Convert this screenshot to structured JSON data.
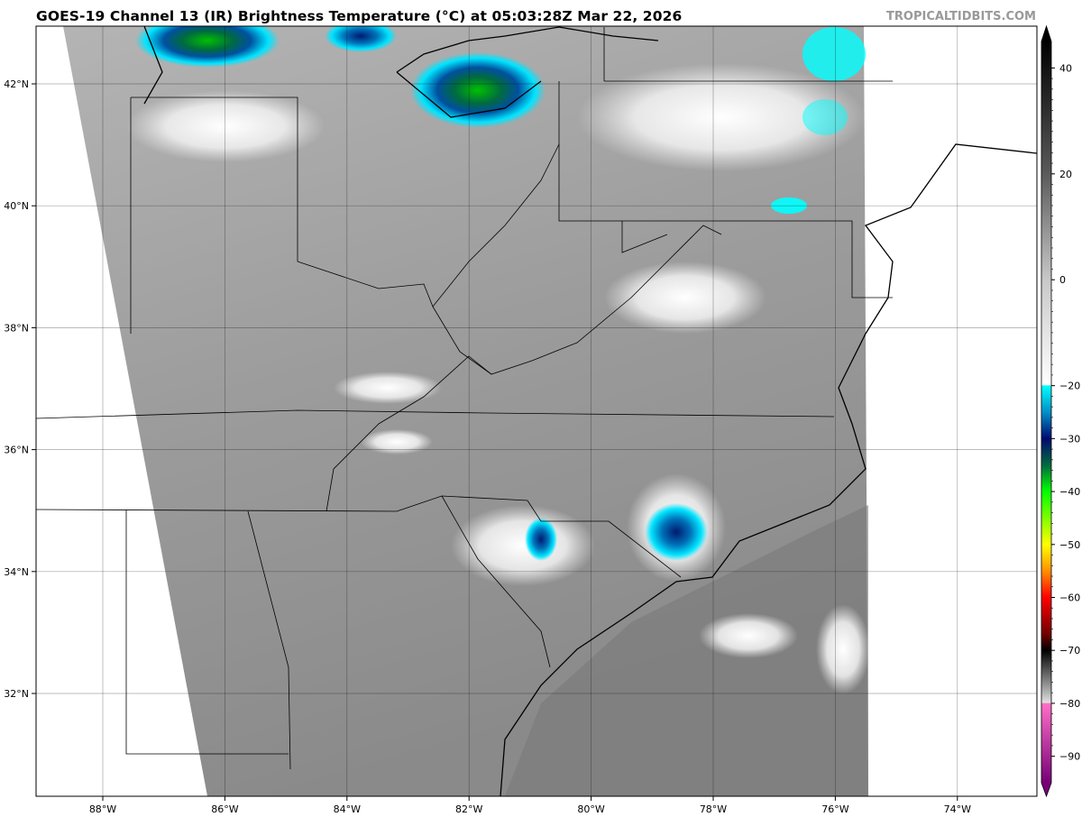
{
  "header": {
    "title": "GOES-19 Channel 13 (IR) Brightness Temperature (°C) at 05:03:28Z Mar 22, 2026",
    "watermark": "TROPICALTIDBITS.COM"
  },
  "map": {
    "lon_ticks": [
      {
        "value": -88,
        "label": "88°W"
      },
      {
        "value": -86,
        "label": "86°W"
      },
      {
        "value": -84,
        "label": "84°W"
      },
      {
        "value": -82,
        "label": "82°W"
      },
      {
        "value": -80,
        "label": "80°W"
      },
      {
        "value": -78,
        "label": "78°W"
      },
      {
        "value": -76,
        "label": "76°W"
      },
      {
        "value": -74,
        "label": "74°W"
      }
    ],
    "lat_ticks": [
      {
        "value": 42,
        "label": "42°N"
      },
      {
        "value": 40,
        "label": "40°N"
      },
      {
        "value": 38,
        "label": "38°N"
      },
      {
        "value": 36,
        "label": "36°N"
      },
      {
        "value": 34,
        "label": "34°N"
      },
      {
        "value": 32,
        "label": "32°N"
      }
    ],
    "land_color": "#9a9a9a",
    "cloud_colors": {
      "cold_top": "#00e5ff",
      "deep": "#002a80",
      "green": "#00c000",
      "high_cloud": "#f2f2f2"
    }
  },
  "colorbar": {
    "unit": "°C",
    "range": [
      -95,
      45
    ],
    "ticks": [
      {
        "value": 40,
        "label": "40"
      },
      {
        "value": 20,
        "label": "20"
      },
      {
        "value": 0,
        "label": "0"
      },
      {
        "value": -20,
        "label": "−20"
      },
      {
        "value": -30,
        "label": "−30"
      },
      {
        "value": -40,
        "label": "−40"
      },
      {
        "value": -50,
        "label": "−50"
      },
      {
        "value": -60,
        "label": "−60"
      },
      {
        "value": -70,
        "label": "−70"
      },
      {
        "value": -80,
        "label": "−80"
      },
      {
        "value": -90,
        "label": "−90"
      }
    ],
    "stops": [
      {
        "value": 45,
        "color": "#000000"
      },
      {
        "value": 20,
        "color": "#5a5a5a"
      },
      {
        "value": 0,
        "color": "#c8c8c8"
      },
      {
        "value": -19.9,
        "color": "#ffffff"
      },
      {
        "value": -20,
        "color": "#00ffff"
      },
      {
        "value": -25,
        "color": "#0090c8"
      },
      {
        "value": -30,
        "color": "#000a70"
      },
      {
        "value": -35,
        "color": "#006a40"
      },
      {
        "value": -40,
        "color": "#00ff00"
      },
      {
        "value": -50,
        "color": "#ffff00"
      },
      {
        "value": -55,
        "color": "#ff9000"
      },
      {
        "value": -60,
        "color": "#ff0000"
      },
      {
        "value": -67,
        "color": "#700000"
      },
      {
        "value": -70,
        "color": "#000000"
      },
      {
        "value": -79.9,
        "color": "#e0e0e0"
      },
      {
        "value": -80,
        "color": "#ff70c8"
      },
      {
        "value": -95,
        "color": "#780078"
      }
    ]
  }
}
